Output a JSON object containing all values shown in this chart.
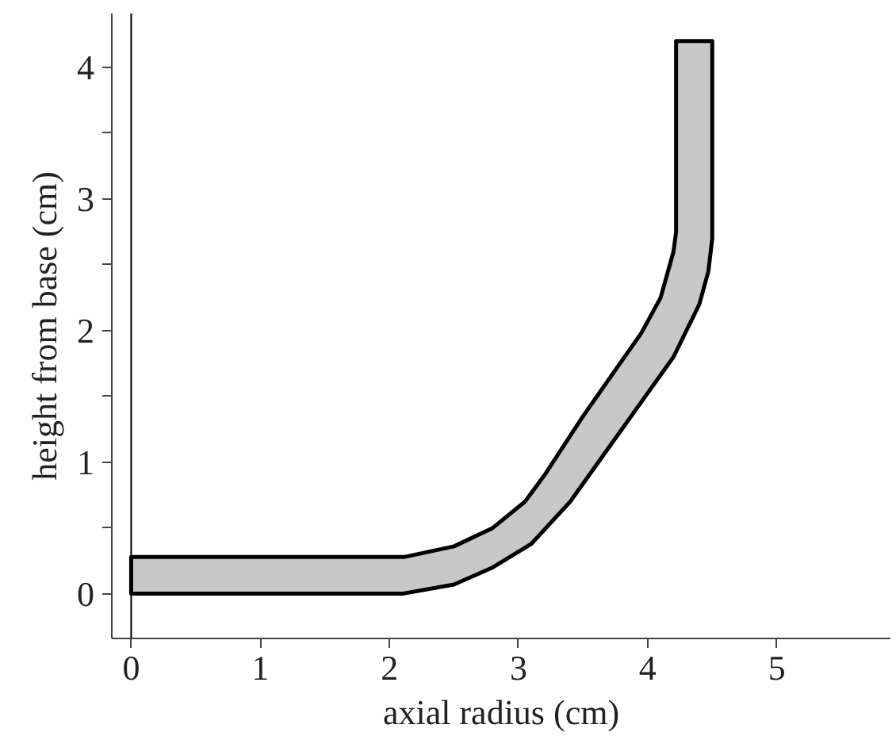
{
  "chart_data": {
    "type": "area",
    "xlabel": "axial radius (cm)",
    "ylabel": "height from base (cm)",
    "series": [
      {
        "color": "#c8c8c8",
        "x": [
          0,
          2.12,
          2.5,
          2.8,
          3.05,
          3.2,
          3.5,
          3.95,
          4.1,
          4.2,
          4.22,
          4.22,
          4.5,
          4.5,
          4.47,
          4.4,
          4.2,
          3.8,
          3.4,
          3.1,
          2.8,
          2.5,
          2.1,
          0
        ],
        "values": [
          0.28,
          0.28,
          0.36,
          0.5,
          0.7,
          0.9,
          1.35,
          1.98,
          2.25,
          2.6,
          2.75,
          4.2,
          4.2,
          2.7,
          2.45,
          2.2,
          1.8,
          1.25,
          0.7,
          0.38,
          0.2,
          0.07,
          0,
          0
        ]
      }
    ],
    "xlim": [
      -0.15,
      5.88
    ],
    "ylim": [
      -0.34,
      4.41
    ],
    "xticks": [
      0,
      1,
      2,
      3,
      4,
      5
    ],
    "yticks": [
      0,
      {
        "value": 0.5,
        "label": null
      },
      1,
      {
        "value": 1.5,
        "label": null
      },
      2,
      {
        "value": 2.5,
        "label": null
      },
      3,
      {
        "value": 3.5,
        "label": null
      },
      4
    ],
    "ref_lines": [
      {
        "axis": "x",
        "value": 0,
        "label": null
      }
    ],
    "grid": false
  }
}
